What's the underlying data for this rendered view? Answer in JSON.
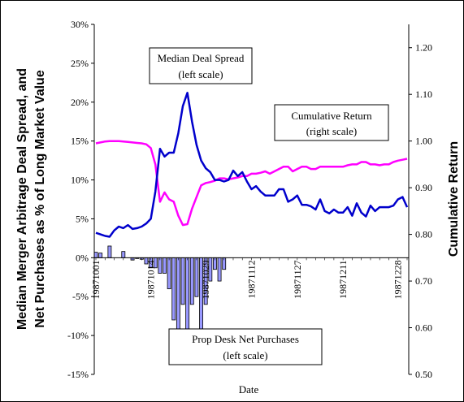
{
  "chart_data": {
    "type": "line",
    "xlabel": "Date",
    "ylabel_left": "Median Merger Arbitrage Deal Spread, and Net Purchases as % of Long Market Value",
    "ylabel_right": "Cumulative Return",
    "ylim_left": [
      -0.15,
      0.3
    ],
    "ylim_right": [
      0.5,
      1.25
    ],
    "left_ticks": [
      "-15%",
      "-10%",
      "-5%",
      "0%",
      "5%",
      "10%",
      "15%",
      "20%",
      "25%",
      "30%"
    ],
    "right_ticks": [
      "0.50",
      "0.60",
      "0.70",
      "0.80",
      "0.90",
      "1.00",
      "1.10",
      "1.20"
    ],
    "x_tick_labels": [
      {
        "index": 0,
        "label": "19871001"
      },
      {
        "index": 12,
        "label": "19871014"
      },
      {
        "index": 24,
        "label": "19871029"
      },
      {
        "index": 34,
        "label": "19871112"
      },
      {
        "index": 44,
        "label": "19871127"
      },
      {
        "index": 54,
        "label": "19871211"
      },
      {
        "index": 66,
        "label": "19871228"
      }
    ],
    "series": [
      {
        "name": "Median Deal Spread",
        "axis": "left",
        "color": "#0000cc",
        "values": [
          0.032,
          0.03,
          0.028,
          0.027,
          0.035,
          0.04,
          0.038,
          0.042,
          0.037,
          0.038,
          0.04,
          0.044,
          0.05,
          0.085,
          0.14,
          0.13,
          0.135,
          0.135,
          0.16,
          0.195,
          0.212,
          0.175,
          0.145,
          0.125,
          0.115,
          0.11,
          0.1,
          0.1,
          0.098,
          0.1,
          0.112,
          0.105,
          0.11,
          0.098,
          0.088,
          0.092,
          0.085,
          0.08,
          0.08,
          0.08,
          0.088,
          0.088,
          0.072,
          0.075,
          0.08,
          0.068,
          0.068,
          0.066,
          0.062,
          0.075,
          0.06,
          0.057,
          0.062,
          0.058,
          0.058,
          0.065,
          0.054,
          0.07,
          0.058,
          0.053,
          0.067,
          0.06,
          0.065,
          0.065,
          0.065,
          0.067,
          0.075,
          0.078,
          0.065
        ]
      },
      {
        "name": "Cumulative Return",
        "axis": "right",
        "color": "#ff00ff",
        "values": [
          0.995,
          0.997,
          0.999,
          1.0,
          1.0,
          1.0,
          0.999,
          0.998,
          0.997,
          0.996,
          0.995,
          0.993,
          0.985,
          0.95,
          0.87,
          0.89,
          0.875,
          0.87,
          0.84,
          0.82,
          0.822,
          0.855,
          0.88,
          0.905,
          0.91,
          0.912,
          0.915,
          0.92,
          0.92,
          0.918,
          0.92,
          0.922,
          0.925,
          0.925,
          0.93,
          0.93,
          0.932,
          0.935,
          0.93,
          0.935,
          0.94,
          0.945,
          0.945,
          0.935,
          0.94,
          0.945,
          0.945,
          0.94,
          0.94,
          0.945,
          0.945,
          0.945,
          0.945,
          0.945,
          0.945,
          0.948,
          0.95,
          0.95,
          0.955,
          0.955,
          0.95,
          0.95,
          0.948,
          0.95,
          0.95,
          0.955,
          0.958,
          0.96,
          0.962
        ]
      },
      {
        "name": "Prop Desk Net Purchases",
        "axis": "left",
        "type": "bar",
        "color": "#9999ff",
        "values": [
          0.007,
          0.006,
          0.0,
          0.015,
          0.0,
          0.0,
          0.008,
          0.0,
          -0.003,
          -0.001,
          -0.002,
          -0.008,
          -0.013,
          -0.013,
          -0.02,
          -0.02,
          -0.04,
          -0.08,
          -0.125,
          -0.06,
          -0.1,
          -0.06,
          -0.05,
          -0.095,
          -0.06,
          -0.03,
          -0.015,
          -0.03,
          -0.015
        ]
      }
    ],
    "annotations": [
      {
        "line1": "Median Deal Spread",
        "line2": "(left scale)"
      },
      {
        "line1": "Cumulative Return",
        "line2": "(right scale)"
      },
      {
        "line1": "Prop Desk Net Purchases",
        "line2": "(left scale)"
      }
    ]
  }
}
